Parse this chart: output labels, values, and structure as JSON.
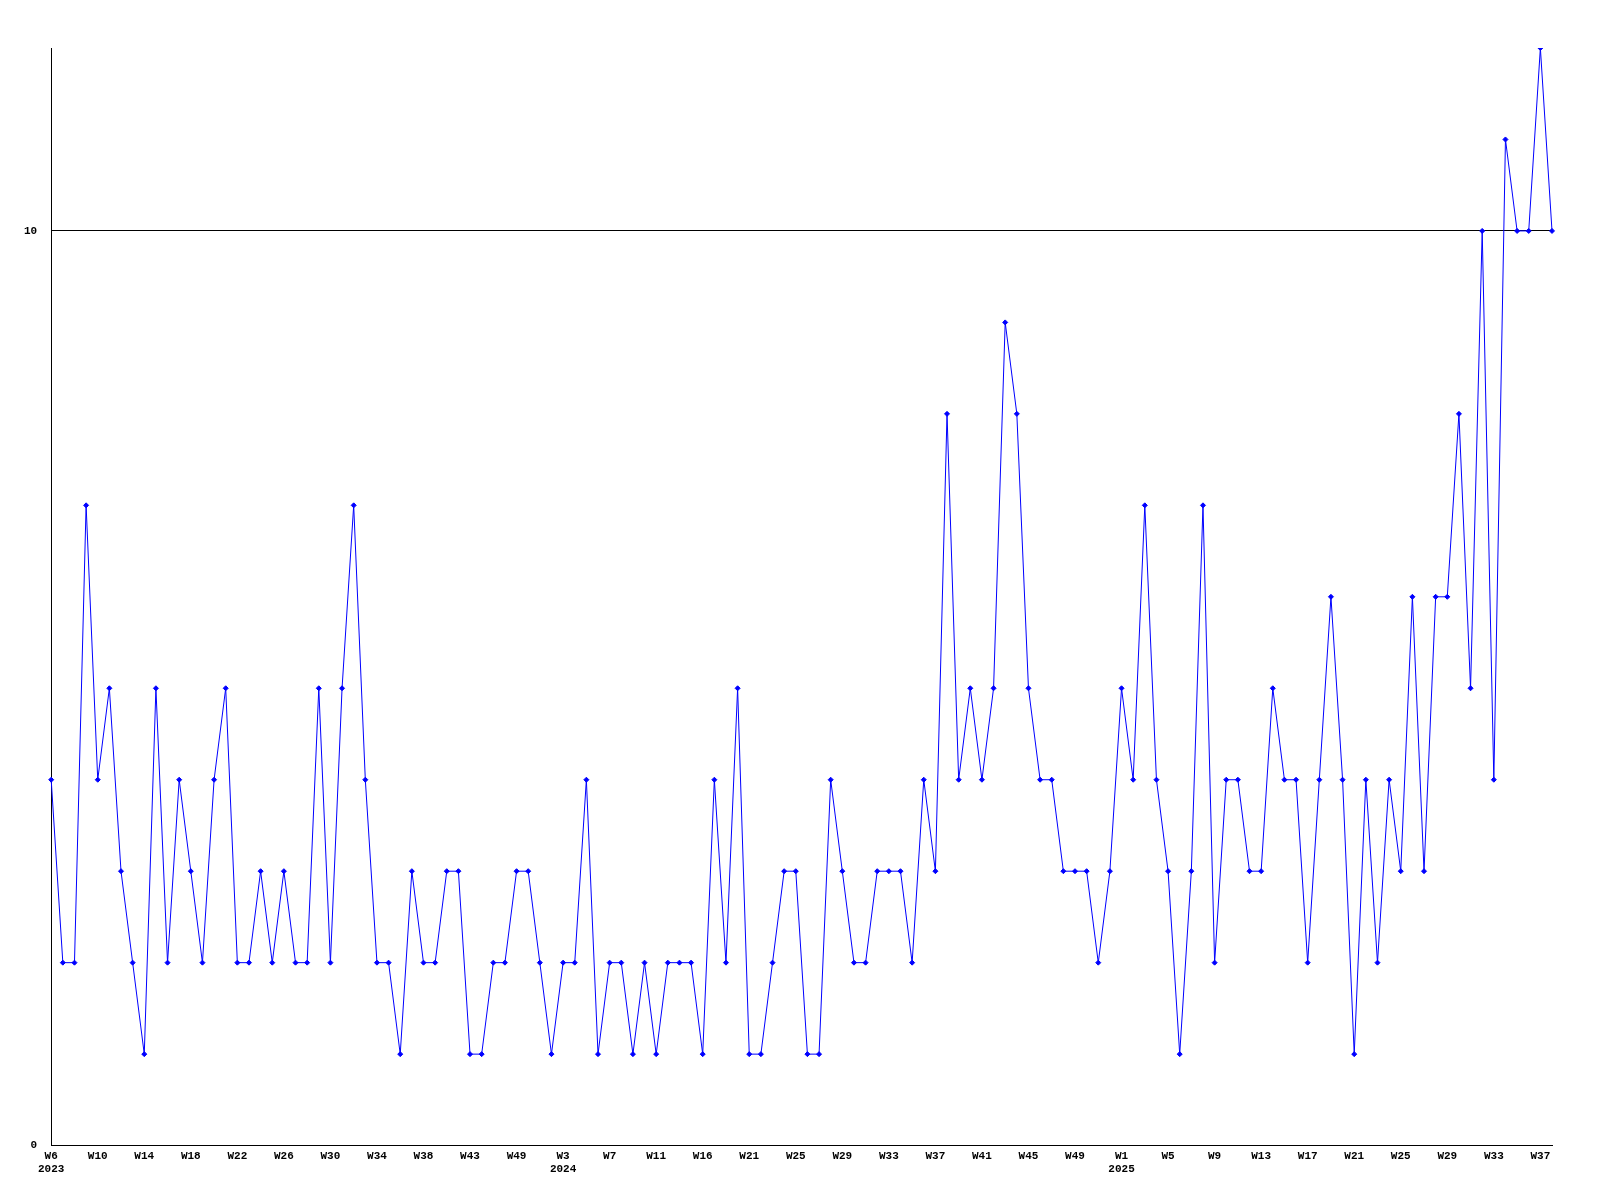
{
  "chart_data": {
    "type": "line",
    "categories": [
      "W6\n2023",
      null,
      null,
      null,
      "W10",
      null,
      null,
      null,
      "W14",
      null,
      null,
      null,
      "W18",
      null,
      null,
      null,
      "W22",
      null,
      null,
      null,
      "W26",
      null,
      null,
      null,
      "W30",
      null,
      null,
      null,
      "W34",
      null,
      null,
      null,
      "W38",
      null,
      null,
      null,
      "W43",
      null,
      null,
      null,
      "W49",
      null,
      null,
      null,
      "W3\n2024",
      null,
      null,
      null,
      "W7",
      null,
      null,
      null,
      "W11",
      null,
      null,
      null,
      "W16",
      null,
      null,
      null,
      "W21",
      null,
      null,
      null,
      "W25",
      null,
      null,
      null,
      "W29",
      null,
      null,
      null,
      "W33",
      null,
      null,
      null,
      "W37",
      null,
      null,
      null,
      "W41",
      null,
      null,
      null,
      "W45",
      null,
      null,
      null,
      "W49",
      null,
      null,
      null,
      "W1\n2025",
      null,
      null,
      null,
      "W5",
      null,
      null,
      null,
      "W9",
      null,
      null,
      null,
      "W13",
      null,
      null,
      null,
      "W17",
      null,
      null,
      null,
      "W21",
      null,
      null,
      null,
      "W25",
      null,
      null,
      null,
      "W29",
      null,
      null,
      null,
      "W33",
      null,
      null,
      null,
      "W37",
      null
    ],
    "series": [
      {
        "color": "#0000ff",
        "values": [
          4,
          2,
          2,
          7,
          4,
          5,
          3,
          2,
          1,
          5,
          2,
          4,
          3,
          2,
          4,
          5,
          2,
          2,
          3,
          2,
          3,
          2,
          2,
          5,
          2,
          5,
          7,
          4,
          2,
          2,
          1,
          3,
          2,
          2,
          3,
          3,
          1,
          1,
          2,
          2,
          3,
          3,
          2,
          1,
          2,
          2,
          4,
          1,
          2,
          2,
          1,
          2,
          1,
          2,
          2,
          2,
          1,
          4,
          2,
          5,
          1,
          1,
          2,
          3,
          3,
          1,
          1,
          4,
          3,
          2,
          2,
          3,
          3,
          3,
          2,
          4,
          3,
          8,
          4,
          5,
          4,
          5,
          9,
          8,
          5,
          4,
          4,
          3,
          3,
          3,
          2,
          3,
          5,
          4,
          7,
          4,
          3,
          1,
          3,
          7,
          2,
          4,
          4,
          3,
          3,
          5,
          4,
          4,
          2,
          4,
          6,
          4,
          1,
          4,
          2,
          4,
          3,
          6,
          3,
          6,
          6,
          8,
          5,
          10,
          4,
          11,
          10,
          10,
          12,
          10
        ]
      }
    ],
    "ylim": [
      0,
      12
    ],
    "yticks": [
      0,
      10
    ],
    "grid": "y",
    "marker": "diamond",
    "legend": false
  }
}
